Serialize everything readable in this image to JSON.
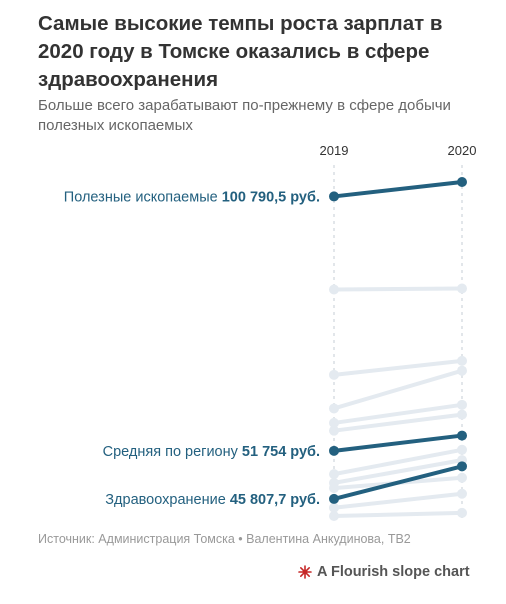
{
  "title": "Самые высокие темпы роста зарплат в 2020 году в Томске оказались в сфере здравоохранения",
  "subtitle": "Больше всего зарабатывают по-прежнему в сфере добычи полезных ископаемых",
  "source": "Источник: Администрация Томска • Валентина Анкудинова, ТВ2",
  "credit": "A Flourish slope chart",
  "colors": {
    "highlight": "#23607f",
    "muted": "#e4eaf0",
    "guide": "#e2e6ea"
  },
  "chart_data": {
    "type": "slope",
    "x": [
      "2019",
      "2020"
    ],
    "series": [
      {
        "name": "Полезные ископаемые",
        "label_value": "100 790,5 руб.",
        "values": [
          98000,
          100790.5
        ],
        "highlight": true
      },
      {
        "name": "",
        "values": [
          80000,
          80200
        ],
        "highlight": false
      },
      {
        "name": "",
        "values": [
          63500,
          66200
        ],
        "highlight": false
      },
      {
        "name": "",
        "values": [
          57000,
          64300
        ],
        "highlight": false
      },
      {
        "name": "",
        "values": [
          54200,
          57700
        ],
        "highlight": false
      },
      {
        "name": "",
        "values": [
          52700,
          55800
        ],
        "highlight": false
      },
      {
        "name": "Средняя по региону",
        "label_value": "51 754 руб.",
        "values": [
          48800,
          51754
        ],
        "highlight": true
      },
      {
        "name": "",
        "values": [
          44300,
          49000
        ],
        "highlight": false
      },
      {
        "name": "",
        "values": [
          42600,
          47000
        ],
        "highlight": false
      },
      {
        "name": "",
        "values": [
          41600,
          43600
        ],
        "highlight": false
      },
      {
        "name": "Здравоохранение",
        "label_value": "45 807,7 руб.",
        "values": [
          39500,
          45807.7
        ],
        "highlight": true
      },
      {
        "name": "",
        "values": [
          37800,
          40500
        ],
        "highlight": false
      },
      {
        "name": "",
        "values": [
          36200,
          36800
        ],
        "highlight": false
      }
    ]
  }
}
